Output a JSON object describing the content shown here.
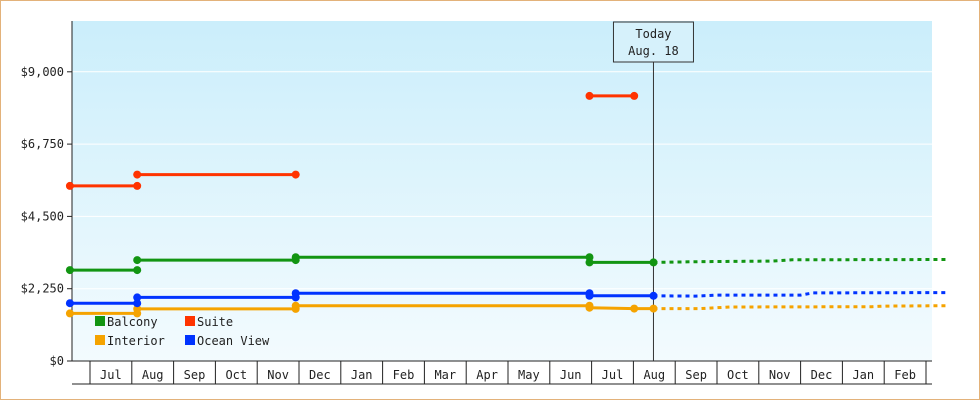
{
  "chart_data": {
    "type": "line",
    "title": "",
    "xlabel": "",
    "ylabel": "",
    "ylim": [
      0,
      10000
    ],
    "yticks": [
      "$0",
      "$2,250",
      "$4,500",
      "$6,750",
      "$9,000"
    ],
    "ytick_values": [
      0,
      2250,
      4500,
      6750,
      9000
    ],
    "months": [
      "Jul",
      "Aug",
      "Sep",
      "Oct",
      "Nov",
      "Dec",
      "Jan",
      "Feb",
      "Mar",
      "Apr",
      "May",
      "Jun",
      "Jul",
      "Aug",
      "Sep",
      "Oct",
      "Nov",
      "Dec",
      "Jan",
      "Feb"
    ],
    "today": {
      "line1": "Today",
      "line2": "Aug. 18",
      "x": 13.48
    },
    "legend_placement": "bottom-left",
    "series": [
      {
        "name": "Balcony",
        "color": "#129512",
        "segments": [
          [
            [
              -0.48,
              2830
            ],
            [
              1.13,
              2830
            ]
          ],
          [
            [
              1.13,
              3140
            ],
            [
              4.92,
              3140
            ]
          ],
          [
            [
              4.92,
              3230
            ],
            [
              11.95,
              3230
            ]
          ],
          [
            [
              11.95,
              3070
            ],
            [
              13.48,
              3070
            ]
          ]
        ],
        "markers": [
          [
            -0.48,
            2830
          ],
          [
            1.13,
            2830
          ],
          [
            1.13,
            3140
          ],
          [
            4.92,
            3140
          ],
          [
            4.92,
            3230
          ],
          [
            11.95,
            3230
          ],
          [
            11.95,
            3070
          ],
          [
            13.48,
            3070
          ]
        ],
        "forecast": [
          [
            13.48,
            3070
          ],
          [
            14.5,
            3090
          ],
          [
            16.3,
            3110
          ],
          [
            16.8,
            3150
          ],
          [
            20.5,
            3160
          ]
        ]
      },
      {
        "name": "Suite",
        "color": "#ff3300",
        "segments": [
          [
            [
              -0.48,
              5450
            ],
            [
              1.13,
              5450
            ]
          ],
          [
            [
              1.13,
              5800
            ],
            [
              4.92,
              5800
            ]
          ],
          [
            [
              11.95,
              8250
            ],
            [
              13.02,
              8250
            ]
          ]
        ],
        "markers": [
          [
            -0.48,
            5450
          ],
          [
            1.13,
            5450
          ],
          [
            1.13,
            5800
          ],
          [
            4.92,
            5800
          ],
          [
            11.95,
            8250
          ],
          [
            13.02,
            8250
          ]
        ],
        "forecast": []
      },
      {
        "name": "Interior",
        "color": "#f5a300",
        "segments": [
          [
            [
              -0.48,
              1480
            ],
            [
              1.13,
              1480
            ]
          ],
          [
            [
              1.13,
              1620
            ],
            [
              4.92,
              1620
            ]
          ],
          [
            [
              4.92,
              1720
            ],
            [
              11.95,
              1720
            ]
          ],
          [
            [
              11.95,
              1660
            ],
            [
              13.02,
              1630
            ],
            [
              13.48,
              1630
            ]
          ]
        ],
        "markers": [
          [
            -0.48,
            1480
          ],
          [
            1.13,
            1480
          ],
          [
            1.13,
            1620
          ],
          [
            4.92,
            1620
          ],
          [
            4.92,
            1720
          ],
          [
            11.95,
            1720
          ],
          [
            11.95,
            1660
          ],
          [
            13.02,
            1630
          ],
          [
            13.48,
            1630
          ]
        ],
        "forecast": [
          [
            13.48,
            1630
          ],
          [
            14.6,
            1630
          ],
          [
            15.3,
            1680
          ],
          [
            18.7,
            1690
          ],
          [
            19.0,
            1710
          ],
          [
            20.5,
            1720
          ]
        ]
      },
      {
        "name": "Ocean View",
        "color": "#0033ff",
        "segments": [
          [
            [
              -0.48,
              1800
            ],
            [
              1.13,
              1800
            ]
          ],
          [
            [
              1.13,
              1980
            ],
            [
              4.92,
              1980
            ]
          ],
          [
            [
              4.92,
              2110
            ],
            [
              11.95,
              2110
            ]
          ],
          [
            [
              11.95,
              2030
            ],
            [
              13.48,
              2030
            ]
          ]
        ],
        "markers": [
          [
            -0.48,
            1800
          ],
          [
            1.13,
            1800
          ],
          [
            1.13,
            1980
          ],
          [
            4.92,
            1980
          ],
          [
            4.92,
            2110
          ],
          [
            11.95,
            2110
          ],
          [
            11.95,
            2030
          ],
          [
            13.48,
            2030
          ]
        ],
        "forecast": [
          [
            13.48,
            2030
          ],
          [
            14.5,
            2020
          ],
          [
            15.0,
            2050
          ],
          [
            17.0,
            2050
          ],
          [
            17.3,
            2120
          ],
          [
            20.5,
            2130
          ]
        ]
      }
    ]
  }
}
